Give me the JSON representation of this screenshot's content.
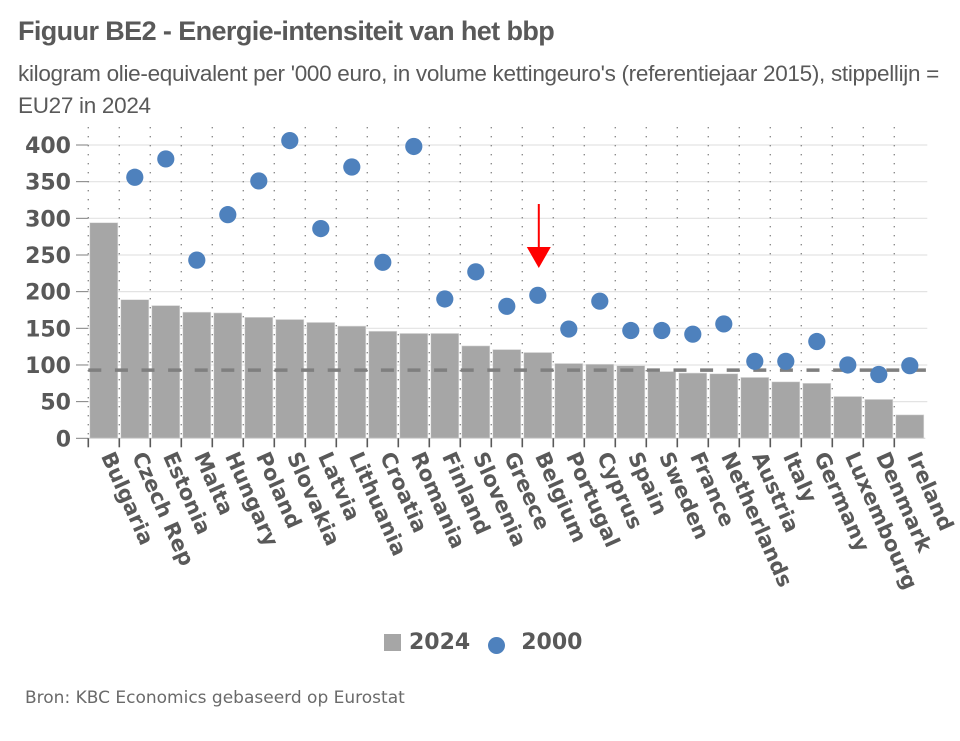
{
  "header": {
    "title": "Figuur BE2 - Energie-intensiteit van het bbp",
    "subtitle": "kilogram olie-equivalent per '000 euro, in volume kettingeuro's (referentiejaar 2015), stippellijn = EU27 in 2024"
  },
  "chart_data": {
    "type": "bar",
    "title": "Figuur BE2 - Energie-intensiteit van het bbp",
    "subtitle": "kilogram olie-equivalent per '000 euro, in volume kettingeuro's (referentiejaar 2015), stippellijn = EU27 in 2024",
    "xlabel": "",
    "ylabel": "",
    "ylim": [
      0,
      400
    ],
    "yticks": [
      0,
      50,
      100,
      150,
      200,
      250,
      300,
      350,
      400
    ],
    "grid": true,
    "legend_position": "bottom",
    "categories": [
      "Bulgaria",
      "Czech Rep",
      "Estonia",
      "Malta",
      "Hungary",
      "Poland",
      "Slovakia",
      "Latvia",
      "Lithuania",
      "Croatia",
      "Romania",
      "Finland",
      "Slovenia",
      "Greece",
      "Belgium",
      "Portugal",
      "Cyprus",
      "Spain",
      "Sweden",
      "France",
      "Netherlands",
      "Austria",
      "Italy",
      "Germany",
      "Luxembourg",
      "Denmark",
      "Ireland"
    ],
    "series": [
      {
        "name": "2024",
        "type": "bar",
        "color": "#a6a6a6",
        "values": [
          294,
          189,
          181,
          172,
          171,
          165,
          162,
          158,
          153,
          146,
          143,
          143,
          126,
          121,
          117,
          102,
          101,
          99,
          91,
          89,
          88,
          83,
          77,
          75,
          57,
          53,
          32
        ]
      },
      {
        "name": "2000",
        "type": "scatter",
        "color": "#4e81bd",
        "values": [
          null,
          356,
          381,
          243,
          305,
          351,
          406,
          286,
          370,
          240,
          398,
          190,
          227,
          180,
          195,
          149,
          187,
          147,
          147,
          142,
          156,
          105,
          105,
          132,
          100,
          87,
          99
        ]
      }
    ],
    "reference_line": {
      "label": "EU27 in 2024",
      "value": 93,
      "style": "dashed",
      "color": "#7f7f7f"
    },
    "annotations": [
      {
        "type": "arrow",
        "target": "Belgium",
        "color": "#ff0000",
        "direction": "down"
      }
    ]
  },
  "legend": [
    {
      "label": "2024",
      "marker": "square"
    },
    {
      "label": "2000",
      "marker": "circle"
    }
  ],
  "footer": {
    "source": "Bron: KBC Economics gebaseerd op Eurostat"
  }
}
